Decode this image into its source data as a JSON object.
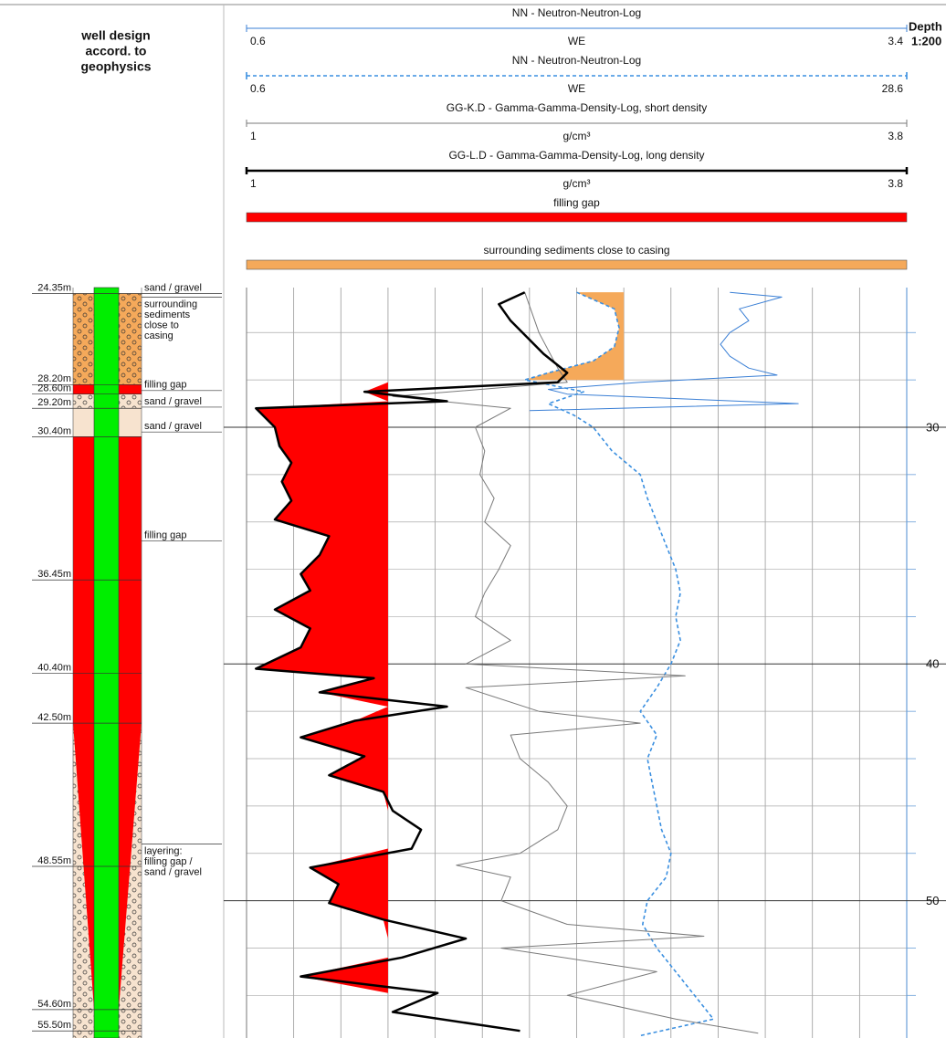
{
  "chart_data": {
    "type": "well-log",
    "column_title": [
      "well design",
      "accord. to",
      "geophysics"
    ],
    "depth_label": "Depth",
    "scale_label": "1:200",
    "ylim": [
      24.1,
      55.8
    ],
    "yticks": [
      30,
      40,
      50
    ],
    "minor_yticks": [
      26,
      28,
      32,
      34,
      36,
      38,
      42,
      44,
      46,
      48,
      52,
      54
    ],
    "x_divisions": 14,
    "grid": true,
    "series": [
      {
        "name": "NN - Neutron-Neutron-Log",
        "unit": "WE",
        "xlim": [
          0.6,
          3.4
        ],
        "color": "#3a7fd5",
        "dash": false,
        "width": 1,
        "depths": [
          24.3,
          24.5,
          25,
          25.5,
          26,
          26.5,
          27,
          27.5,
          27.8,
          28.1,
          28.4,
          28.6,
          29,
          29.3
        ],
        "values": [
          2.65,
          2.87,
          2.69,
          2.73,
          2.65,
          2.61,
          2.65,
          2.73,
          2.85,
          2.27,
          1.88,
          1.96,
          2.94,
          1.8
        ]
      },
      {
        "name": "NN - Neutron-Neutron-Log",
        "unit": "WE",
        "xlim": [
          0.6,
          28.6
        ],
        "color": "#3a8fe0",
        "dash": true,
        "width": 1.6,
        "depths": [
          24.3,
          25,
          25.8,
          26.6,
          27.2,
          27.7,
          28,
          28.5,
          29,
          29.5,
          30,
          31,
          32,
          33,
          34,
          35,
          36,
          37,
          38,
          39,
          40,
          41,
          42,
          43,
          44,
          45,
          46,
          47,
          48,
          49,
          50,
          51,
          52,
          53,
          54,
          55,
          55.7
        ],
        "values": [
          14.6,
          16.2,
          16.4,
          16.2,
          15.3,
          13.4,
          12.4,
          14.9,
          13.4,
          14.5,
          15.3,
          16.1,
          17.3,
          17.6,
          18,
          18.4,
          18.8,
          19,
          18.8,
          19,
          18.6,
          18,
          17.3,
          18,
          17.6,
          17.8,
          18,
          18.2,
          18.6,
          18.4,
          17.6,
          17.4,
          18,
          18.8,
          19.6,
          20.4,
          17.3
        ]
      },
      {
        "name": "GG-K.D - Gamma-Gamma-Density-Log, short density",
        "unit": "g/cm³",
        "xlim": [
          1,
          3.8
        ],
        "color": "#7a7a7a",
        "dash": false,
        "width": 1,
        "depths": [
          24.3,
          26,
          27.5,
          28.1,
          28.7,
          29.2,
          30,
          31,
          32,
          33,
          34,
          35,
          36,
          37,
          38,
          39,
          40,
          40.5,
          41,
          42,
          42.5,
          43,
          44,
          45,
          46,
          47,
          48,
          48.5,
          49,
          50,
          51,
          51.5,
          52,
          53,
          54,
          55,
          55.6
        ],
        "values": [
          2.18,
          2.24,
          2.32,
          2.36,
          1.62,
          2.12,
          1.97,
          2.01,
          1.99,
          2.05,
          2.01,
          2.12,
          2.07,
          2.01,
          1.97,
          2.12,
          1.93,
          2.86,
          1.93,
          2.24,
          2.67,
          2.12,
          2.16,
          2.28,
          2.36,
          2.32,
          2.16,
          1.89,
          2.12,
          2.08,
          2.36,
          2.94,
          2.08,
          2.74,
          2.36,
          2.82,
          3.17
        ]
      },
      {
        "name": "GG-L.D - Gamma-Gamma-Density-Log, long density",
        "unit": "g/cm³",
        "xlim": [
          1,
          3.8
        ],
        "color": "#000000",
        "dash": false,
        "width": 2.5,
        "depths": [
          24.3,
          24.8,
          25.5,
          26.1,
          26.9,
          27.7,
          28.1,
          28.5,
          28.9,
          29.2,
          30,
          30.8,
          31.5,
          32.3,
          33.1,
          33.9,
          34.6,
          35.4,
          36.2,
          36.9,
          37.7,
          38.5,
          39.3,
          40.2,
          40.6,
          41.2,
          41.8,
          42.4,
          43.1,
          43.9,
          44.7,
          45.4,
          46.2,
          47,
          47.8,
          48.6,
          49.3,
          50.1,
          50.8,
          51.6,
          52.4,
          53.2,
          53.9,
          54.7,
          55.5
        ],
        "values": [
          2.18,
          2.07,
          2.12,
          2.18,
          2.26,
          2.36,
          2.32,
          1.5,
          1.85,
          1.04,
          1.12,
          1.14,
          1.19,
          1.15,
          1.19,
          1.12,
          1.35,
          1.31,
          1.23,
          1.27,
          1.12,
          1.27,
          1.23,
          1.04,
          1.54,
          1.31,
          1.85,
          1.46,
          1.23,
          1.5,
          1.35,
          1.58,
          1.62,
          1.74,
          1.7,
          1.27,
          1.39,
          1.35,
          1.58,
          1.93,
          1.66,
          1.23,
          1.81,
          1.62,
          2.16
        ]
      }
    ],
    "fills": [
      {
        "name": "filling gap",
        "color": "#ff0000",
        "series": 3,
        "to": 1.6
      },
      {
        "name": "surrounding sediments close to casing",
        "color": "#f5a95a",
        "series": 1,
        "to": 16.6,
        "depth_max": 28.2
      }
    ],
    "casing_color": "#00ee00",
    "depth_marks": [
      {
        "value": 24.35,
        "label": "24.35m"
      },
      {
        "value": 28.2,
        "label": "28.20m"
      },
      {
        "value": 28.6,
        "label": "28.60m"
      },
      {
        "value": 29.2,
        "label": "29.20m"
      },
      {
        "value": 30.4,
        "label": "30.40m"
      },
      {
        "value": 36.45,
        "label": "36.45m"
      },
      {
        "value": 40.4,
        "label": "40.40m"
      },
      {
        "value": 42.5,
        "label": "42.50m"
      },
      {
        "value": 48.55,
        "label": "48.55m"
      },
      {
        "value": 54.6,
        "label": "54.60m"
      },
      {
        "value": 55.5,
        "label": "55.50m"
      }
    ],
    "layer_fills": [
      "gravel-orange",
      "red",
      "gravel-beige",
      "beige",
      "red",
      "red",
      "red",
      "layering",
      "layering",
      "gravel-beige",
      "gravel-beige"
    ],
    "annotations": [
      {
        "depth": 24.35,
        "lines": [
          "sand / gravel"
        ]
      },
      {
        "depth": 24.5,
        "lines": [
          "surrounding",
          "sediments",
          "close to",
          "casing"
        ]
      },
      {
        "depth": 28.45,
        "lines": [
          "filling gap"
        ]
      },
      {
        "depth": 29.15,
        "lines": [
          "sand / gravel"
        ]
      },
      {
        "depth": 30.2,
        "lines": [
          "sand / gravel"
        ]
      },
      {
        "depth": 34.8,
        "lines": [
          "filling gap"
        ]
      },
      {
        "depth": 47.6,
        "lines": [
          "layering:",
          "filling gap /",
          "sand / gravel"
        ]
      }
    ]
  }
}
